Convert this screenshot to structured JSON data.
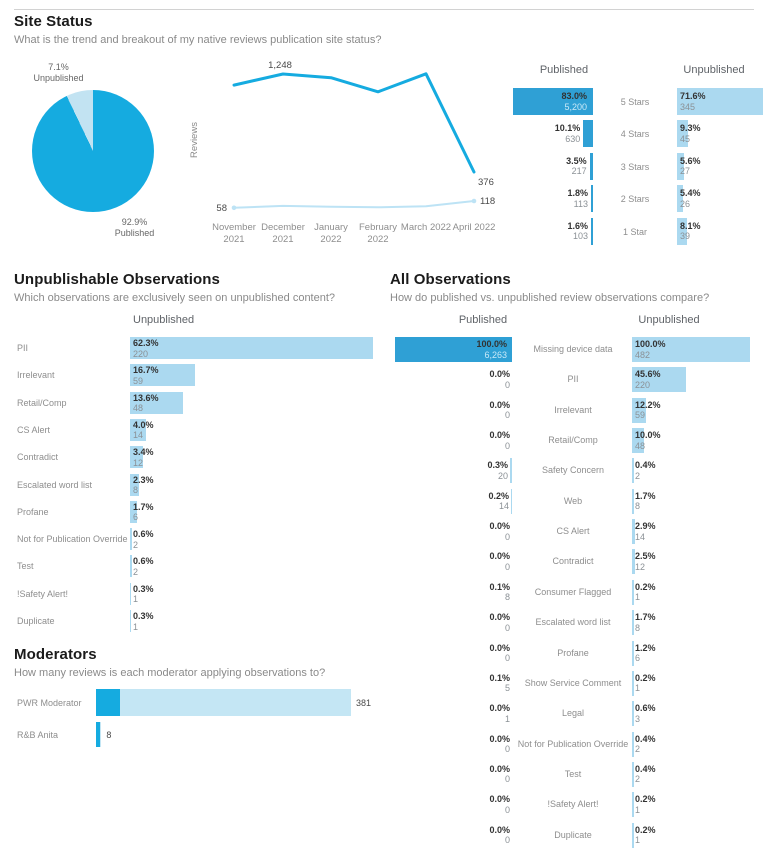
{
  "sections": {
    "site_status": {
      "title": "Site Status",
      "subtitle": "What is the trend and breakout of my native reviews publication site status?"
    },
    "unpublishable": {
      "title": "Unpublishable Observations",
      "subtitle": "Which observations are exclusively seen on unpublished content?"
    },
    "all_observations": {
      "title": "All Observations",
      "subtitle": "How do published vs. unpublished review observations compare?"
    },
    "moderators": {
      "title": "Moderators",
      "subtitle": "How many reviews is each moderator applying observations to?"
    }
  },
  "colors": {
    "published_dark": "#2FA0D5",
    "accent_cyan": "#15ABE0",
    "light_blue": "#ABD9F0",
    "pie_light": "#C2E3F2",
    "line_light": "#BDE3F5",
    "moderator_light": "#C4E6F4",
    "percent_text": "#323232",
    "count_text": "#8B9196",
    "count_in_dark_bar": "#C9E9F8",
    "row_label_gray": "#8E8E8E",
    "header_gray": "#5F6368"
  },
  "chart_data": [
    {
      "id": "site_status_pie",
      "type": "pie",
      "slices": [
        {
          "label": "Published",
          "value_pct": 92.9
        },
        {
          "label": "Unpublished",
          "value_pct": 7.1
        }
      ],
      "callouts": {
        "unpublished_pct": "7.1%",
        "unpublished_label": "Unpublished",
        "published_pct": "92.9%",
        "published_label": "Published"
      }
    },
    {
      "id": "reviews_by_month",
      "type": "line",
      "ylabel": "Reviews",
      "categories": [
        "November 2021",
        "December 2021",
        "January 2022",
        "February 2022",
        "March 2022",
        "April 2022"
      ],
      "series": [
        {
          "name": "Published",
          "values": [
            1150,
            1248,
            1215,
            1090,
            1250,
            376
          ]
        },
        {
          "name": "Unpublished",
          "values": [
            58,
            75,
            68,
            62,
            72,
            118
          ]
        }
      ],
      "point_labels": [
        {
          "series": 0,
          "index": 1,
          "text": "1,248"
        },
        {
          "series": 0,
          "index": 5,
          "text": "376"
        },
        {
          "series": 1,
          "index": 0,
          "text": "58"
        },
        {
          "series": 1,
          "index": 5,
          "text": "118"
        }
      ]
    },
    {
      "id": "star_breakout",
      "type": "bar",
      "columns": [
        "Published",
        "Unpublished"
      ],
      "rows": [
        {
          "label": "5 Stars",
          "published": {
            "pct": 83.0,
            "pct_label": "83.0%",
            "count": "5,200"
          },
          "unpublished": {
            "pct": 71.6,
            "pct_label": "71.6%",
            "count": "345"
          }
        },
        {
          "label": "4 Stars",
          "published": {
            "pct": 10.1,
            "pct_label": "10.1%",
            "count": "630"
          },
          "unpublished": {
            "pct": 9.3,
            "pct_label": "9.3%",
            "count": "45"
          }
        },
        {
          "label": "3 Stars",
          "published": {
            "pct": 3.5,
            "pct_label": "3.5%",
            "count": "217"
          },
          "unpublished": {
            "pct": 5.6,
            "pct_label": "5.6%",
            "count": "27"
          }
        },
        {
          "label": "2 Stars",
          "published": {
            "pct": 1.8,
            "pct_label": "1.8%",
            "count": "113"
          },
          "unpublished": {
            "pct": 5.4,
            "pct_label": "5.4%",
            "count": "26"
          }
        },
        {
          "label": "1 Star",
          "published": {
            "pct": 1.6,
            "pct_label": "1.6%",
            "count": "103"
          },
          "unpublished": {
            "pct": 8.1,
            "pct_label": "8.1%",
            "count": "39"
          }
        }
      ]
    },
    {
      "id": "unpublishable_observations",
      "type": "bar",
      "column_header": "Unpublished",
      "categories": [
        "PII",
        "Irrelevant",
        "Retail/Comp",
        "CS Alert",
        "Contradict",
        "Escalated word list",
        "Profane",
        "Not for Publication Override",
        "Test",
        "!Safety Alert!",
        "Duplicate"
      ],
      "values_pct": [
        62.3,
        16.7,
        13.6,
        4.0,
        3.4,
        2.3,
        1.7,
        0.6,
        0.6,
        0.3,
        0.3
      ],
      "pct_labels": [
        "62.3%",
        "16.7%",
        "13.6%",
        "4.0%",
        "3.4%",
        "2.3%",
        "1.7%",
        "0.6%",
        "0.6%",
        "0.3%",
        "0.3%"
      ],
      "counts": [
        "220",
        "59",
        "48",
        "14",
        "12",
        "8",
        "6",
        "2",
        "2",
        "1",
        "1"
      ]
    },
    {
      "id": "all_observations",
      "type": "bar",
      "columns": [
        "Published",
        "Unpublished"
      ],
      "categories": [
        "Missing device data",
        "PII",
        "Irrelevant",
        "Retail/Comp",
        "Safety Concern",
        "Web",
        "CS Alert",
        "Contradict",
        "Consumer Flagged",
        "Escalated word list",
        "Profane",
        "Show Service Comment",
        "Legal",
        "Not for Publication Override",
        "Test",
        "!Safety Alert!",
        "Duplicate"
      ],
      "published": [
        {
          "pct": 100.0,
          "pct_label": "100.0%",
          "count": "6,263"
        },
        {
          "pct": 0.0,
          "pct_label": "0.0%",
          "count": "0"
        },
        {
          "pct": 0.0,
          "pct_label": "0.0%",
          "count": "0"
        },
        {
          "pct": 0.0,
          "pct_label": "0.0%",
          "count": "0"
        },
        {
          "pct": 0.3,
          "pct_label": "0.3%",
          "count": "20"
        },
        {
          "pct": 0.2,
          "pct_label": "0.2%",
          "count": "14"
        },
        {
          "pct": 0.0,
          "pct_label": "0.0%",
          "count": "0"
        },
        {
          "pct": 0.0,
          "pct_label": "0.0%",
          "count": "0"
        },
        {
          "pct": 0.1,
          "pct_label": "0.1%",
          "count": "8"
        },
        {
          "pct": 0.0,
          "pct_label": "0.0%",
          "count": "0"
        },
        {
          "pct": 0.0,
          "pct_label": "0.0%",
          "count": "0"
        },
        {
          "pct": 0.1,
          "pct_label": "0.1%",
          "count": "5"
        },
        {
          "pct": 0.0,
          "pct_label": "0.0%",
          "count": "1"
        },
        {
          "pct": 0.0,
          "pct_label": "0.0%",
          "count": "0"
        },
        {
          "pct": 0.0,
          "pct_label": "0.0%",
          "count": "0"
        },
        {
          "pct": 0.0,
          "pct_label": "0.0%",
          "count": "0"
        },
        {
          "pct": 0.0,
          "pct_label": "0.0%",
          "count": "0"
        }
      ],
      "unpublished": [
        {
          "pct": 100.0,
          "pct_label": "100.0%",
          "count": "482"
        },
        {
          "pct": 45.6,
          "pct_label": "45.6%",
          "count": "220"
        },
        {
          "pct": 12.2,
          "pct_label": "12.2%",
          "count": "59"
        },
        {
          "pct": 10.0,
          "pct_label": "10.0%",
          "count": "48"
        },
        {
          "pct": 0.4,
          "pct_label": "0.4%",
          "count": "2"
        },
        {
          "pct": 1.7,
          "pct_label": "1.7%",
          "count": "8"
        },
        {
          "pct": 2.9,
          "pct_label": "2.9%",
          "count": "14"
        },
        {
          "pct": 2.5,
          "pct_label": "2.5%",
          "count": "12"
        },
        {
          "pct": 0.2,
          "pct_label": "0.2%",
          "count": "1"
        },
        {
          "pct": 1.7,
          "pct_label": "1.7%",
          "count": "8"
        },
        {
          "pct": 1.2,
          "pct_label": "1.2%",
          "count": "6"
        },
        {
          "pct": 0.2,
          "pct_label": "0.2%",
          "count": "1"
        },
        {
          "pct": 0.6,
          "pct_label": "0.6%",
          "count": "3"
        },
        {
          "pct": 0.4,
          "pct_label": "0.4%",
          "count": "2"
        },
        {
          "pct": 0.4,
          "pct_label": "0.4%",
          "count": "2"
        },
        {
          "pct": 0.2,
          "pct_label": "0.2%",
          "count": "1"
        },
        {
          "pct": 0.2,
          "pct_label": "0.2%",
          "count": "1"
        }
      ]
    },
    {
      "id": "moderators",
      "type": "bar",
      "categories": [
        "PWR Moderator",
        "R&B Anita"
      ],
      "values": [
        381,
        8
      ],
      "value_labels": [
        "381",
        "8"
      ],
      "segments": [
        [
          36,
          345
        ],
        [
          6,
          2
        ]
      ]
    }
  ]
}
